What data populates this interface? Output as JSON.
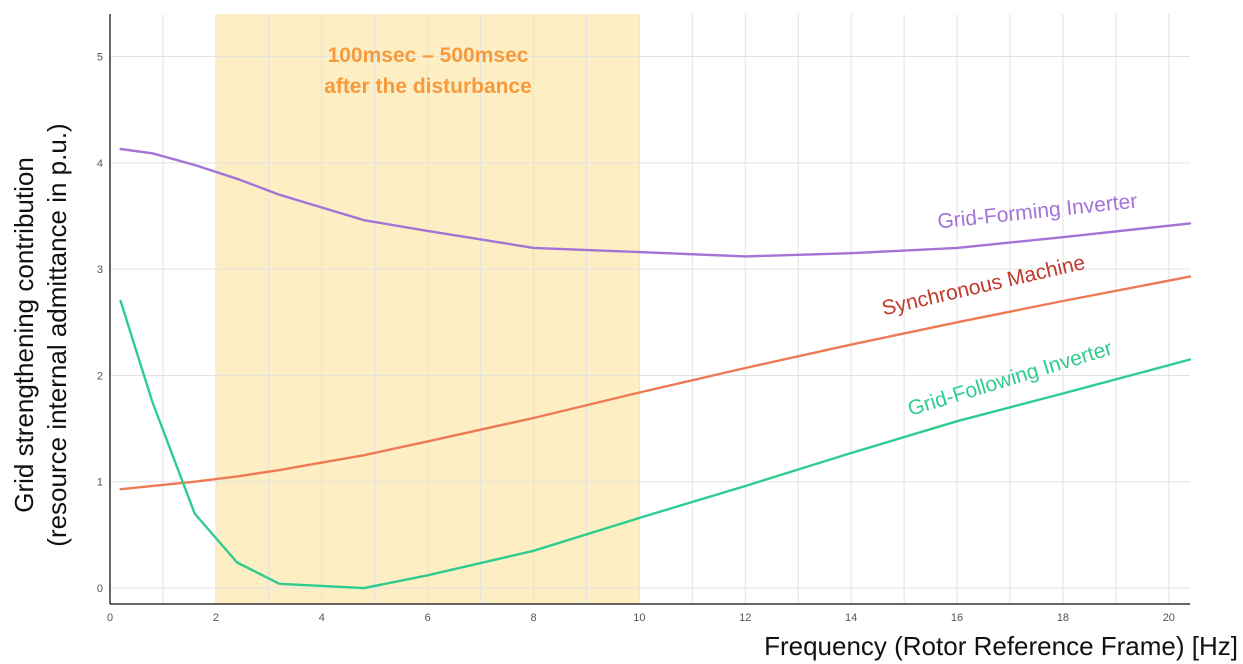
{
  "chart_data": {
    "type": "line",
    "title": "",
    "xlabel": "Frequency (Rotor Reference Frame) [Hz]",
    "ylabel_line1": "Grid strengthening contribution",
    "ylabel_line2": "(resource internal admittance in p.u.)",
    "xlim": [
      0,
      20.4
    ],
    "ylim": [
      -0.15,
      5.4
    ],
    "x_ticks": [
      "0",
      "2",
      "4",
      "6",
      "8",
      "10",
      "12",
      "14",
      "16",
      "18",
      "20"
    ],
    "y_ticks": [
      "0",
      "1",
      "2",
      "3",
      "4",
      "5"
    ],
    "grid": true,
    "highlight_band": {
      "x_range": [
        2,
        10
      ],
      "color": "#fdeec4",
      "label_line1": "100msec – 500msec",
      "label_line2": "after the disturbance",
      "label_color": "#f79a3c"
    },
    "series": [
      {
        "name": "Grid-Forming Inverter",
        "color": "#a374d6",
        "x": [
          0.2,
          0.8,
          1.6,
          2.4,
          3.2,
          4.0,
          4.8,
          6.0,
          8.0,
          10.0,
          12.0,
          14.0,
          16.0,
          18.0,
          20.4
        ],
        "y": [
          4.13,
          4.09,
          3.98,
          3.85,
          3.7,
          3.58,
          3.46,
          3.36,
          3.2,
          3.16,
          3.12,
          3.15,
          3.2,
          3.3,
          3.43
        ]
      },
      {
        "name": "Synchronous Machine",
        "color": "#ee7a55",
        "x": [
          0.2,
          1.6,
          2.4,
          3.2,
          4.0,
          4.8,
          6.0,
          8.0,
          10.0,
          12.0,
          14.0,
          16.0,
          18.0,
          20.4
        ],
        "y": [
          0.93,
          1.0,
          1.05,
          1.11,
          1.18,
          1.25,
          1.38,
          1.6,
          1.84,
          2.07,
          2.29,
          2.5,
          2.7,
          2.93
        ]
      },
      {
        "name": "Grid-Following Inverter",
        "color": "#2ecc8e",
        "x": [
          0.2,
          0.8,
          1.6,
          2.4,
          3.2,
          4.0,
          4.8,
          6.0,
          8.0,
          10.0,
          12.0,
          14.0,
          16.0,
          18.0,
          20.4
        ],
        "y": [
          2.7,
          1.75,
          0.7,
          0.24,
          0.04,
          0.02,
          0.0,
          0.12,
          0.35,
          0.66,
          0.96,
          1.27,
          1.57,
          1.83,
          2.15
        ]
      }
    ]
  }
}
